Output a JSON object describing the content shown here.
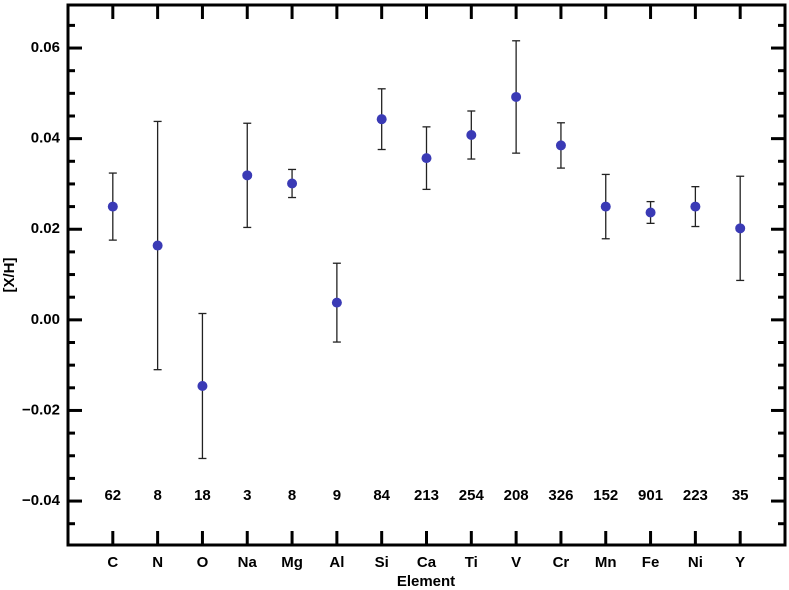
{
  "chart_data": {
    "type": "errorbar",
    "x_label": "Element",
    "y_label": "[X/H]",
    "categories": [
      "C",
      "N",
      "O",
      "Na",
      "Mg",
      "Al",
      "Si",
      "Ca",
      "Ti",
      "V",
      "Cr",
      "Mn",
      "Fe",
      "Ni",
      "Y"
    ],
    "values": [
      0.025,
      0.0164,
      -0.0146,
      0.0319,
      0.0301,
      0.0038,
      0.0443,
      0.0357,
      0.0408,
      0.0492,
      0.0385,
      0.025,
      0.0237,
      0.025,
      0.0202
    ],
    "errors": [
      0.0074,
      0.0274,
      0.016,
      0.0115,
      0.0031,
      0.0087,
      0.0067,
      0.0069,
      0.0053,
      0.0124,
      0.005,
      0.0071,
      0.0024,
      0.0044,
      0.0115
    ],
    "counts": [
      62,
      8,
      18,
      3,
      8,
      9,
      84,
      213,
      254,
      208,
      326,
      152,
      901,
      223,
      35
    ],
    "color": "#3a3ab5",
    "ylim": [
      -0.0497,
      0.0695
    ],
    "yticks": [
      {
        "value": -0.04,
        "label": "−0.04"
      },
      {
        "value": -0.02,
        "label": "−0.02"
      },
      {
        "value": 0,
        "label": "0.00"
      },
      0.02,
      0.04,
      0.06
    ],
    "minor_yticks": [
      -0.045,
      -0.035,
      -0.03,
      -0.025,
      -0.015,
      -0.01,
      -0.005,
      0.005,
      0.01,
      0.015,
      0.025,
      0.03,
      0.035,
      0.045,
      0.05,
      0.055,
      0.065
    ]
  }
}
